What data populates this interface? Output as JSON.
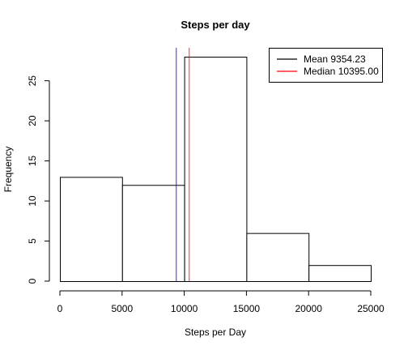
{
  "chart_data": {
    "type": "bar",
    "title": "Steps per day",
    "xlabel": "Steps per Day",
    "ylabel": "Frequency",
    "bins": [
      {
        "start": 0,
        "end": 5000,
        "count": 13
      },
      {
        "start": 5000,
        "end": 10000,
        "count": 12
      },
      {
        "start": 10000,
        "end": 15000,
        "count": 28
      },
      {
        "start": 15000,
        "end": 20000,
        "count": 6
      },
      {
        "start": 20000,
        "end": 25000,
        "count": 2
      }
    ],
    "xlim": [
      0,
      25000
    ],
    "ylim": [
      0,
      28
    ],
    "xticks": [
      0,
      5000,
      10000,
      15000,
      20000,
      25000
    ],
    "yticks": [
      0,
      5,
      10,
      15,
      20,
      25
    ],
    "bar_fill": "#ffffff",
    "bar_stroke": "#000000",
    "grid": false,
    "reference_lines": [
      {
        "label": "Mean 9354.23",
        "value": 9354.23,
        "color": "#0000ff"
      },
      {
        "label": "Median 10395.00",
        "value": 10395.0,
        "color": "#ff0000"
      }
    ],
    "legend": {
      "position": "top-right",
      "entries": [
        {
          "label": "Mean 9354.23",
          "color": "#000000"
        },
        {
          "label": "Median 10395.00",
          "color": "#ff0000"
        }
      ]
    }
  }
}
